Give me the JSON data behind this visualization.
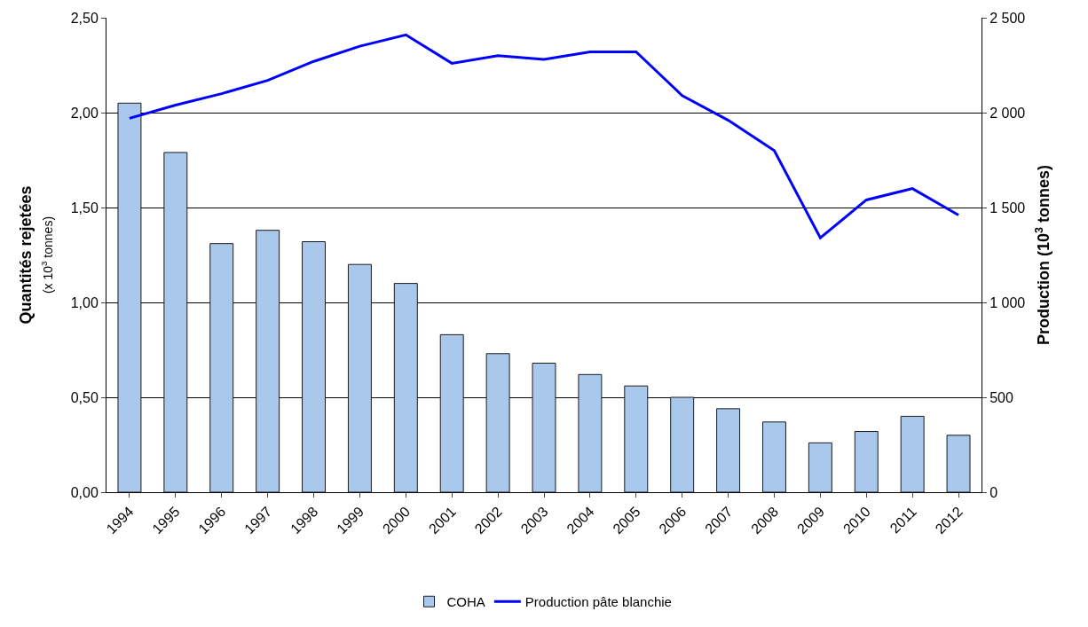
{
  "chart_data": {
    "type": "bar",
    "ylabel": "Quantités rejetées\n(x 10$^{3}$ tonnes)",
    "y2label": "Production (10$^{3}$ tonnes)",
    "categories": [
      "1994",
      "1995",
      "1996",
      "1997",
      "1998",
      "1999",
      "2000",
      "2001",
      "2002",
      "2003",
      "2004",
      "2005",
      "2006",
      "2007",
      "2008",
      "2009",
      "2010",
      "2011",
      "2012"
    ],
    "series": [
      {
        "name": "COHA",
        "color": "#a9c8ec",
        "values": [
          2.05,
          1.79,
          1.31,
          1.38,
          1.32,
          1.2,
          1.1,
          0.83,
          0.73,
          0.68,
          0.62,
          0.56,
          0.5,
          0.44,
          0.37,
          0.26,
          0.32,
          0.4,
          0.3
        ]
      },
      {
        "name": "Production pâte blanchie",
        "type": "line",
        "axis": "y2",
        "color": "#0000ff",
        "values": [
          1970,
          2040,
          2100,
          2170,
          2270,
          2350,
          2410,
          2260,
          2300,
          2280,
          2320,
          2320,
          2090,
          1960,
          1800,
          1340,
          1540,
          1600,
          1460
        ]
      }
    ],
    "ylim": [
      0,
      2.5
    ],
    "yticks": [
      {
        "value": 0,
        "label": "0,00"
      },
      {
        "value": 0.5,
        "label": "0,50"
      },
      {
        "value": 1,
        "label": "1,00"
      },
      {
        "value": 1.5,
        "label": "1,50"
      },
      {
        "value": 2,
        "label": "2,00"
      },
      {
        "value": 2.5,
        "label": "2,50"
      }
    ],
    "y2lim": [
      0,
      2500
    ],
    "y2ticks": [
      0,
      500,
      {
        "value": 1000,
        "label": "1 000"
      },
      {
        "value": 1500,
        "label": "1 500"
      },
      {
        "value": 2000,
        "label": "2 000"
      },
      {
        "value": 2500,
        "label": "2 500"
      }
    ],
    "grid": "y",
    "legend": "bottom",
    "marker": "none",
    "line_style": "solid"
  }
}
